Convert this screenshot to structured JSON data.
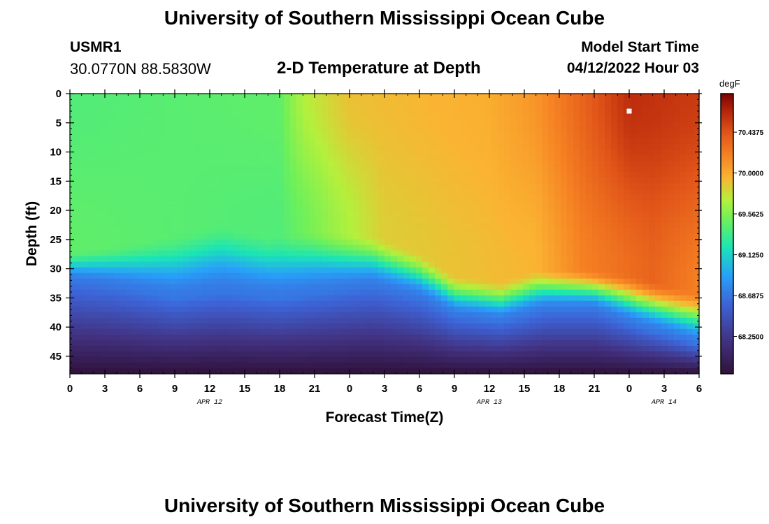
{
  "header": {
    "title": "University of Southern Mississippi Ocean Cube",
    "station_id": "USMR1",
    "coordinates": "30.0770N  88.5830W",
    "subtitle": "2-D Temperature at Depth",
    "model_start_label": "Model Start Time",
    "model_start_value": "04/12/2022 Hour 03"
  },
  "footer": {
    "title": "University of Southern Mississippi Ocean Cube"
  },
  "chart_data": {
    "type": "heatmap",
    "title": "2-D Temperature at Depth",
    "xlabel": "Forecast Time(Z)",
    "ylabel": "Depth (ft)",
    "x_range_hours": [
      0,
      54
    ],
    "x_tick_labels": [
      "0",
      "3",
      "6",
      "9",
      "12",
      "15",
      "18",
      "21",
      "0",
      "3",
      "6",
      "9",
      "12",
      "15",
      "18",
      "21",
      "0",
      "3",
      "6"
    ],
    "date_labels": [
      {
        "text": "APR 12",
        "hour": 12
      },
      {
        "text": "APR 13",
        "hour": 36
      },
      {
        "text": "APR 14",
        "hour": 51
      }
    ],
    "y_range_ft": [
      0,
      48
    ],
    "y_ticks": [
      0,
      5,
      10,
      15,
      20,
      25,
      30,
      35,
      40,
      45
    ],
    "colorbar": {
      "units": "degF",
      "min": 67.85,
      "max": 70.85,
      "tick_values": [
        70.4375,
        70.0,
        69.5625,
        69.125,
        68.6875,
        68.25
      ],
      "tick_labels": [
        "70.4375",
        "70.0000",
        "69.5625",
        "69.1250",
        "68.6875",
        "68.2500"
      ]
    },
    "marker": {
      "hour": 48,
      "depth_ft": 3
    },
    "model": {
      "surface_temperature_profile": [
        {
          "hour": 0,
          "temp": 69.4
        },
        {
          "hour": 18,
          "temp": 69.45
        },
        {
          "hour": 20,
          "temp": 69.7
        },
        {
          "hour": 24,
          "temp": 69.9
        },
        {
          "hour": 36,
          "temp": 69.98
        },
        {
          "hour": 40,
          "temp": 70.1
        },
        {
          "hour": 44,
          "temp": 70.35
        },
        {
          "hour": 48,
          "temp": 70.62
        },
        {
          "hour": 54,
          "temp": 70.55
        }
      ],
      "mid_temperature_profile": [
        {
          "hour": 0,
          "temp": 69.45
        },
        {
          "hour": 18,
          "temp": 69.4
        },
        {
          "hour": 21,
          "temp": 69.55
        },
        {
          "hour": 27,
          "temp": 69.85
        },
        {
          "hour": 34,
          "temp": 69.9
        },
        {
          "hour": 40,
          "temp": 69.95
        },
        {
          "hour": 44,
          "temp": 70.2
        },
        {
          "hour": 50,
          "temp": 70.35
        },
        {
          "hour": 54,
          "temp": 70.2
        }
      ],
      "thermocline_top_ft": [
        {
          "hour": 0,
          "depth": 27
        },
        {
          "hour": 4,
          "depth": 26
        },
        {
          "hour": 9,
          "depth": 24
        },
        {
          "hour": 13,
          "depth": 22
        },
        {
          "hour": 17,
          "depth": 24
        },
        {
          "hour": 21,
          "depth": 23
        },
        {
          "hour": 26,
          "depth": 24
        },
        {
          "hour": 30,
          "depth": 27
        },
        {
          "hour": 33,
          "depth": 31
        },
        {
          "hour": 37,
          "depth": 32
        },
        {
          "hour": 40,
          "depth": 30
        },
        {
          "hour": 44,
          "depth": 30
        },
        {
          "hour": 48,
          "depth": 31
        },
        {
          "hour": 54,
          "depth": 34
        }
      ],
      "thermocline_bottom_ft": [
        {
          "hour": 0,
          "depth": 32
        },
        {
          "hour": 4,
          "depth": 33
        },
        {
          "hour": 9,
          "depth": 35
        },
        {
          "hour": 13,
          "depth": 34
        },
        {
          "hour": 18,
          "depth": 35
        },
        {
          "hour": 22,
          "depth": 34
        },
        {
          "hour": 26,
          "depth": 33
        },
        {
          "hour": 30,
          "depth": 35
        },
        {
          "hour": 33,
          "depth": 38
        },
        {
          "hour": 37,
          "depth": 39
        },
        {
          "hour": 41,
          "depth": 37
        },
        {
          "hour": 45,
          "depth": 37
        },
        {
          "hour": 49,
          "depth": 40
        },
        {
          "hour": 54,
          "depth": 43
        }
      ],
      "bottom_temperature": 67.85
    }
  }
}
